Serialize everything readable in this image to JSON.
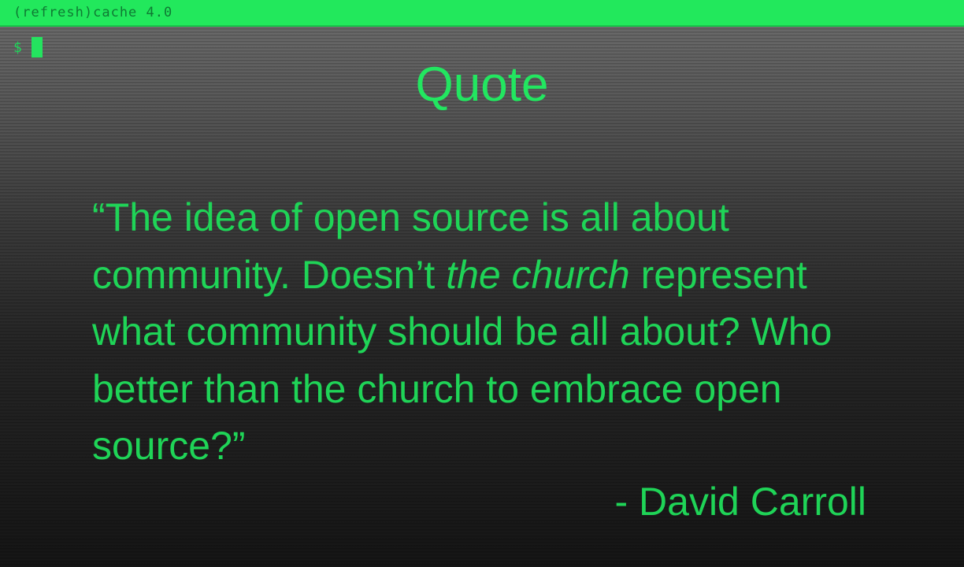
{
  "window": {
    "title": "(refresh)cache 4.0"
  },
  "terminal": {
    "prompt": "$"
  },
  "slide": {
    "title": "Quote",
    "quote_part1": "“The idea of open source is all about community. Doesn’t ",
    "quote_emphasis": "the church",
    "quote_part2": " represent what community should be all about? Who better than the church to embrace open source?”",
    "author": "- David Carroll"
  }
}
